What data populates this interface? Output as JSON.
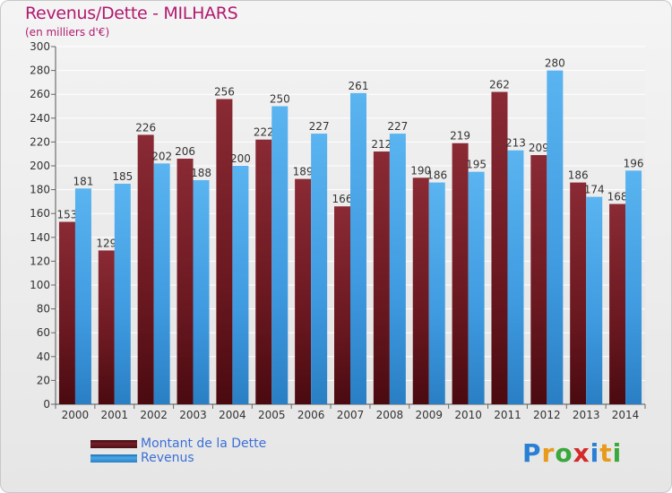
{
  "title": "Revenus/Dette - MILHARS",
  "subtitle": "(en milliers d'€)",
  "logo": "Proxiti",
  "colors": {
    "dette": "#7a1f2a",
    "revenus": "#4aa8e8",
    "title": "#b01a6e"
  },
  "chart_data": {
    "type": "bar",
    "categories": [
      "2000",
      "2001",
      "2002",
      "2003",
      "2004",
      "2005",
      "2006",
      "2007",
      "2008",
      "2009",
      "2010",
      "2011",
      "2012",
      "2013",
      "2014"
    ],
    "series": [
      {
        "name": "Montant de la Dette",
        "values": [
          153,
          129,
          226,
          206,
          256,
          222,
          189,
          166,
          212,
          190,
          219,
          262,
          209,
          186,
          168
        ]
      },
      {
        "name": "Revenus",
        "values": [
          181,
          185,
          202,
          188,
          200,
          250,
          227,
          261,
          227,
          186,
          195,
          213,
          280,
          174,
          196
        ]
      }
    ],
    "ylim": [
      0,
      300
    ],
    "yticks": [
      0,
      20,
      40,
      60,
      80,
      100,
      120,
      140,
      160,
      180,
      200,
      220,
      240,
      260,
      280,
      300
    ],
    "grid": true,
    "legend": "bottom-left"
  }
}
